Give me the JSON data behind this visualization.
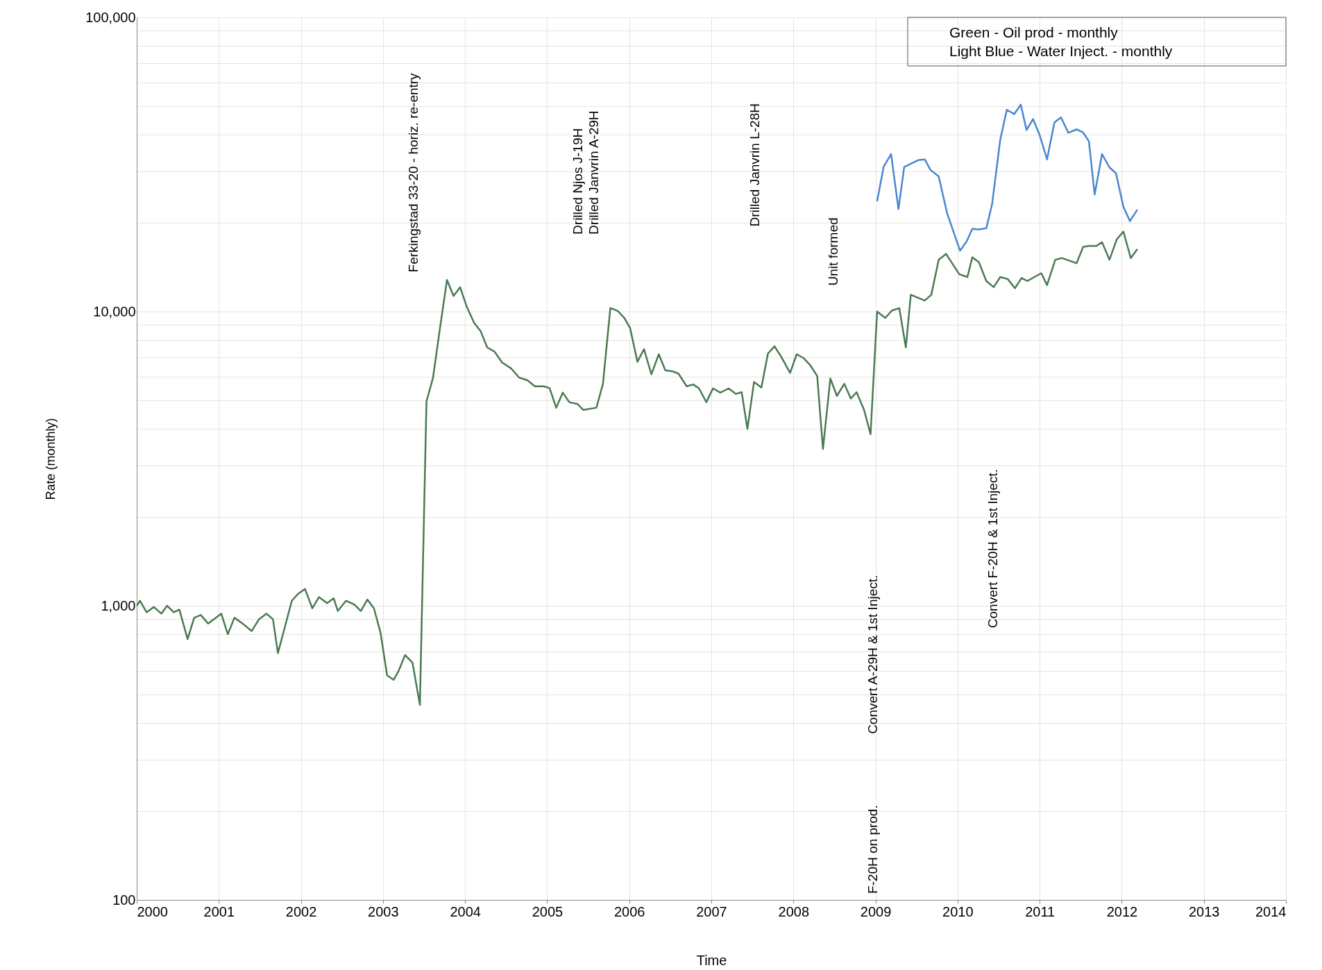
{
  "chart_data": {
    "type": "line",
    "xlabel": "Time",
    "ylabel": "Rate (monthly)",
    "xlim": [
      2000,
      2014
    ],
    "xticks": [
      2000,
      2001,
      2002,
      2003,
      2004,
      2005,
      2006,
      2007,
      2008,
      2009,
      2010,
      2011,
      2012,
      2013,
      2014
    ],
    "ylim": [
      100,
      100000
    ],
    "log": "y",
    "yticks": [
      {
        "value": 100,
        "label": "100"
      },
      {
        "value": 200,
        "label": null
      },
      {
        "value": 300,
        "label": null
      },
      {
        "value": 400,
        "label": null
      },
      {
        "value": 500,
        "label": null
      },
      {
        "value": 600,
        "label": null
      },
      {
        "value": 700,
        "label": null
      },
      {
        "value": 800,
        "label": null
      },
      {
        "value": 900,
        "label": null
      },
      {
        "value": 1000,
        "label": "1,000"
      },
      {
        "value": 2000,
        "label": null
      },
      {
        "value": 3000,
        "label": null
      },
      {
        "value": 4000,
        "label": null
      },
      {
        "value": 5000,
        "label": null
      },
      {
        "value": 6000,
        "label": null
      },
      {
        "value": 7000,
        "label": null
      },
      {
        "value": 8000,
        "label": null
      },
      {
        "value": 9000,
        "label": null
      },
      {
        "value": 10000,
        "label": "10,000"
      },
      {
        "value": 20000,
        "label": null
      },
      {
        "value": 30000,
        "label": null
      },
      {
        "value": 40000,
        "label": null
      },
      {
        "value": 50000,
        "label": null
      },
      {
        "value": 60000,
        "label": null
      },
      {
        "value": 70000,
        "label": null
      },
      {
        "value": 80000,
        "label": null
      },
      {
        "value": 90000,
        "label": null
      },
      {
        "value": 100000,
        "label": "100,000"
      }
    ],
    "grid": true,
    "marker": "none",
    "line_style": "solid",
    "series": [
      {
        "color": "#4a7a52",
        "x": [
          2000.0,
          2000.04,
          2000.12,
          2000.21,
          2000.3,
          2000.37,
          2000.45,
          2000.52,
          2000.62,
          2000.7,
          2000.78,
          2000.87,
          2001.03,
          2001.11,
          2001.19,
          2001.29,
          2001.4,
          2001.49,
          2001.58,
          2001.66,
          2001.72,
          2001.89,
          2001.97,
          2002.05,
          2002.14,
          2002.22,
          2002.32,
          2002.4,
          2002.45,
          2002.55,
          2002.65,
          2002.73,
          2002.81,
          2002.89,
          2002.97,
          2003.05,
          2003.13,
          2003.19,
          2003.27,
          2003.36,
          2003.45,
          2003.53,
          2003.61,
          2003.7,
          2003.78,
          2003.86,
          2003.94,
          2004.02,
          2004.11,
          2004.19,
          2004.27,
          2004.36,
          2004.45,
          2004.56,
          2004.66,
          2004.76,
          2004.85,
          2004.96,
          2005.03,
          2005.11,
          2005.19,
          2005.27,
          2005.37,
          2005.44,
          2005.6,
          2005.68,
          2005.77,
          2005.86,
          2005.94,
          2006.01,
          2006.1,
          2006.18,
          2006.27,
          2006.36,
          2006.44,
          2006.53,
          2006.6,
          2006.7,
          2006.78,
          2006.85,
          2006.94,
          2007.02,
          2007.11,
          2007.21,
          2007.3,
          2007.37,
          2007.44,
          2007.52,
          2007.61,
          2007.69,
          2007.77,
          2007.85,
          2007.96,
          2008.04,
          2008.12,
          2008.2,
          2008.29,
          2008.36,
          2008.45,
          2008.53,
          2008.62,
          2008.7,
          2008.77,
          2008.86,
          2008.94,
          2009.02,
          2009.12,
          2009.2,
          2009.29,
          2009.37,
          2009.43,
          2009.6,
          2009.68,
          2009.77,
          2009.86,
          2010.02,
          2010.12,
          2010.18,
          2010.26,
          2010.35,
          2010.44,
          2010.52,
          2010.61,
          2010.7,
          2010.78,
          2010.85,
          2011.02,
          2011.09,
          2011.19,
          2011.27,
          2011.45,
          2011.53,
          2011.6,
          2011.69,
          2011.76,
          2011.85,
          2011.94,
          2012.02,
          2012.11,
          2012.19
        ],
        "values": [
          1000,
          1040,
          950,
          990,
          940,
          1000,
          950,
          970,
          770,
          910,
          930,
          870,
          940,
          800,
          910,
          870,
          820,
          900,
          940,
          900,
          690,
          1040,
          1100,
          1140,
          980,
          1070,
          1020,
          1060,
          960,
          1040,
          1010,
          960,
          1050,
          980,
          810,
          580,
          560,
          600,
          680,
          640,
          460,
          4950,
          5960,
          9000,
          12800,
          11300,
          12100,
          10400,
          9160,
          8580,
          7550,
          7300,
          6720,
          6410,
          5960,
          5840,
          5570,
          5570,
          5490,
          4710,
          5300,
          4920,
          4850,
          4630,
          4710,
          5680,
          10280,
          10050,
          9510,
          8800,
          6750,
          7450,
          6120,
          7160,
          6310,
          6260,
          6150,
          5570,
          5650,
          5480,
          4920,
          5480,
          5300,
          5480,
          5250,
          5320,
          3990,
          5760,
          5520,
          7200,
          7620,
          7030,
          6190,
          7160,
          6960,
          6600,
          6040,
          3410,
          5920,
          5170,
          5680,
          5060,
          5320,
          4640,
          3830,
          10000,
          9510,
          10080,
          10270,
          7550,
          11400,
          10900,
          11400,
          15000,
          15700,
          13400,
          13100,
          15300,
          14700,
          12700,
          12100,
          13100,
          12900,
          12000,
          13000,
          12700,
          13500,
          12300,
          15000,
          15200,
          14600,
          16600,
          16700,
          16700,
          17200,
          15000,
          17600,
          18700,
          15200,
          16300
        ]
      },
      {
        "color": "#4a86d0",
        "x": [
          2009.02,
          2009.1,
          2009.19,
          2009.28,
          2009.35,
          2009.52,
          2009.6,
          2009.67,
          2009.77,
          2009.87,
          2010.03,
          2010.11,
          2010.18,
          2010.26,
          2010.35,
          2010.42,
          2010.52,
          2010.6,
          2010.69,
          2010.77,
          2010.84,
          2010.92,
          2011.0,
          2011.09,
          2011.18,
          2011.26,
          2011.35,
          2011.45,
          2011.53,
          2011.6,
          2011.67,
          2011.76,
          2011.85,
          2011.93,
          2012.02,
          2012.1,
          2012.19
        ],
        "values": [
          23700,
          31100,
          34300,
          22300,
          31000,
          32700,
          32900,
          30300,
          28800,
          21700,
          16100,
          17300,
          19100,
          19000,
          19200,
          23100,
          38400,
          48500,
          46900,
          50500,
          41400,
          45100,
          39800,
          32900,
          43900,
          45700,
          40500,
          41600,
          40600,
          37900,
          25000,
          34300,
          30900,
          29500,
          22700,
          20300,
          22200
        ]
      }
    ],
    "annotations": [
      "Ferkingstad 33-20 - horiz. re-entry",
      "Drilled Njos J-19H",
      "Drilled Janvrin A-29H",
      "Drilled Janvrin L-28H",
      "Unit formed",
      "Convert A-29H & 1st Inject.",
      "F-20H on prod.",
      "Convert F-20H & 1st Inject.",
      "Green - Oil prod - monthly",
      "Light Blue - Water Inject. - monthly"
    ]
  }
}
